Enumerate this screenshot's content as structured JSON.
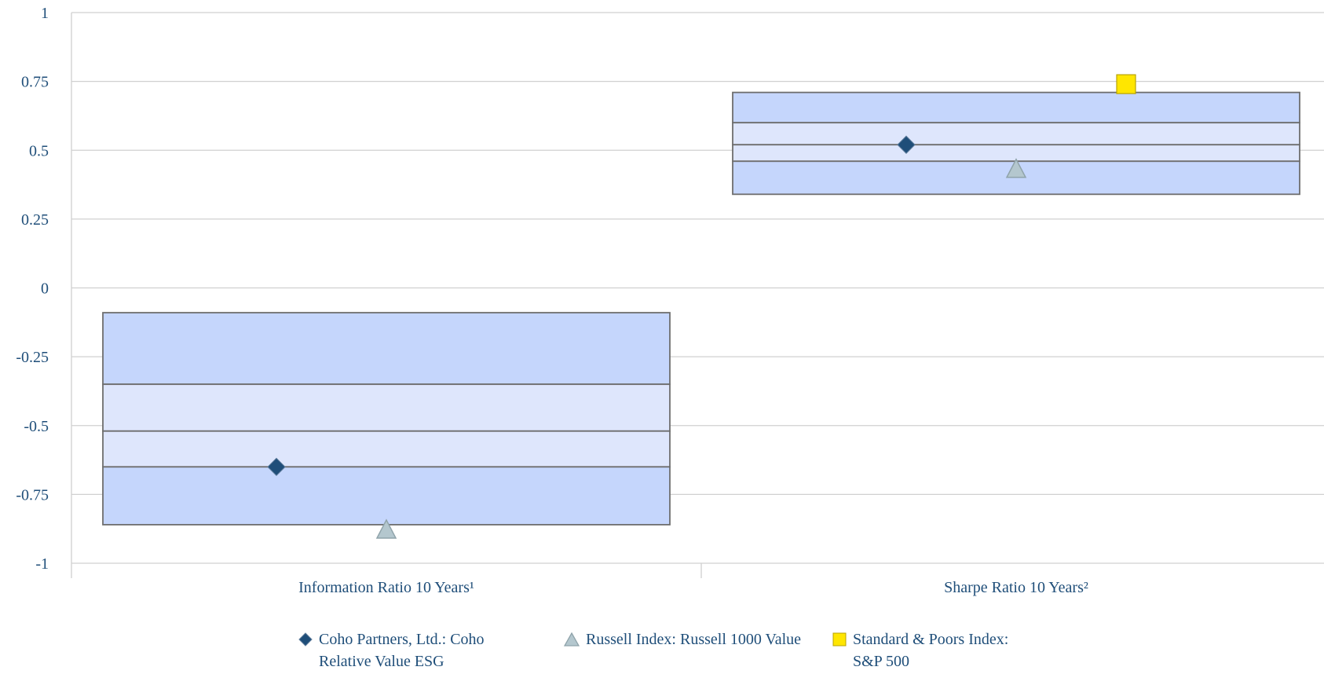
{
  "colors": {
    "outer_band": "#C5D6FC",
    "inner_band": "#DEE6FC",
    "band_border": "#6E6E6E",
    "grid": "#D0D0D0",
    "axis_text": "#1F4E79",
    "diamond": "#1F4E79",
    "triangle": "#B4C7CE",
    "square": "#FFE600"
  },
  "legend": [
    {
      "label": "Coho Partners, Ltd.: Coho\nRelative Value ESG",
      "marker": "diamond"
    },
    {
      "label": "Russell Index: Russell 1000 Value",
      "marker": "triangle"
    },
    {
      "label": "Standard & Poors Index:\nS&P 500",
      "marker": "square"
    }
  ],
  "chart_data": {
    "type": "floating-bar-percentile",
    "title": "",
    "xlabel": "",
    "ylabel": "",
    "ylim": [
      -1,
      1
    ],
    "y_ticks": [
      1,
      0.75,
      0.5,
      0.25,
      0,
      -0.25,
      -0.5,
      -0.75,
      -1
    ],
    "y_tick_labels": [
      "1",
      "0.75",
      "0.5",
      "0.25",
      "0",
      "-0.25",
      "-0.5",
      "-0.75",
      "-1"
    ],
    "grid": true,
    "categories": [
      "Information Ratio 10 Years¹",
      "Sharpe Ratio 10 Years²"
    ],
    "bands": [
      {
        "top": -0.09,
        "upper_quartile": -0.35,
        "median": -0.52,
        "lower_quartile": -0.65,
        "bottom": -0.86
      },
      {
        "top": 0.71,
        "upper_quartile": 0.6,
        "median": 0.52,
        "lower_quartile": 0.46,
        "bottom": 0.34
      }
    ],
    "series": [
      {
        "name": "Coho Partners, Ltd.: Coho Relative Value ESG",
        "marker": "diamond",
        "values": [
          -0.65,
          0.52
        ]
      },
      {
        "name": "Russell Index: Russell 1000 Value",
        "marker": "triangle",
        "values": [
          -0.88,
          0.43
        ]
      },
      {
        "name": "Standard & Poors Index: S&P 500",
        "marker": "square",
        "values": [
          null,
          0.74
        ]
      }
    ]
  }
}
